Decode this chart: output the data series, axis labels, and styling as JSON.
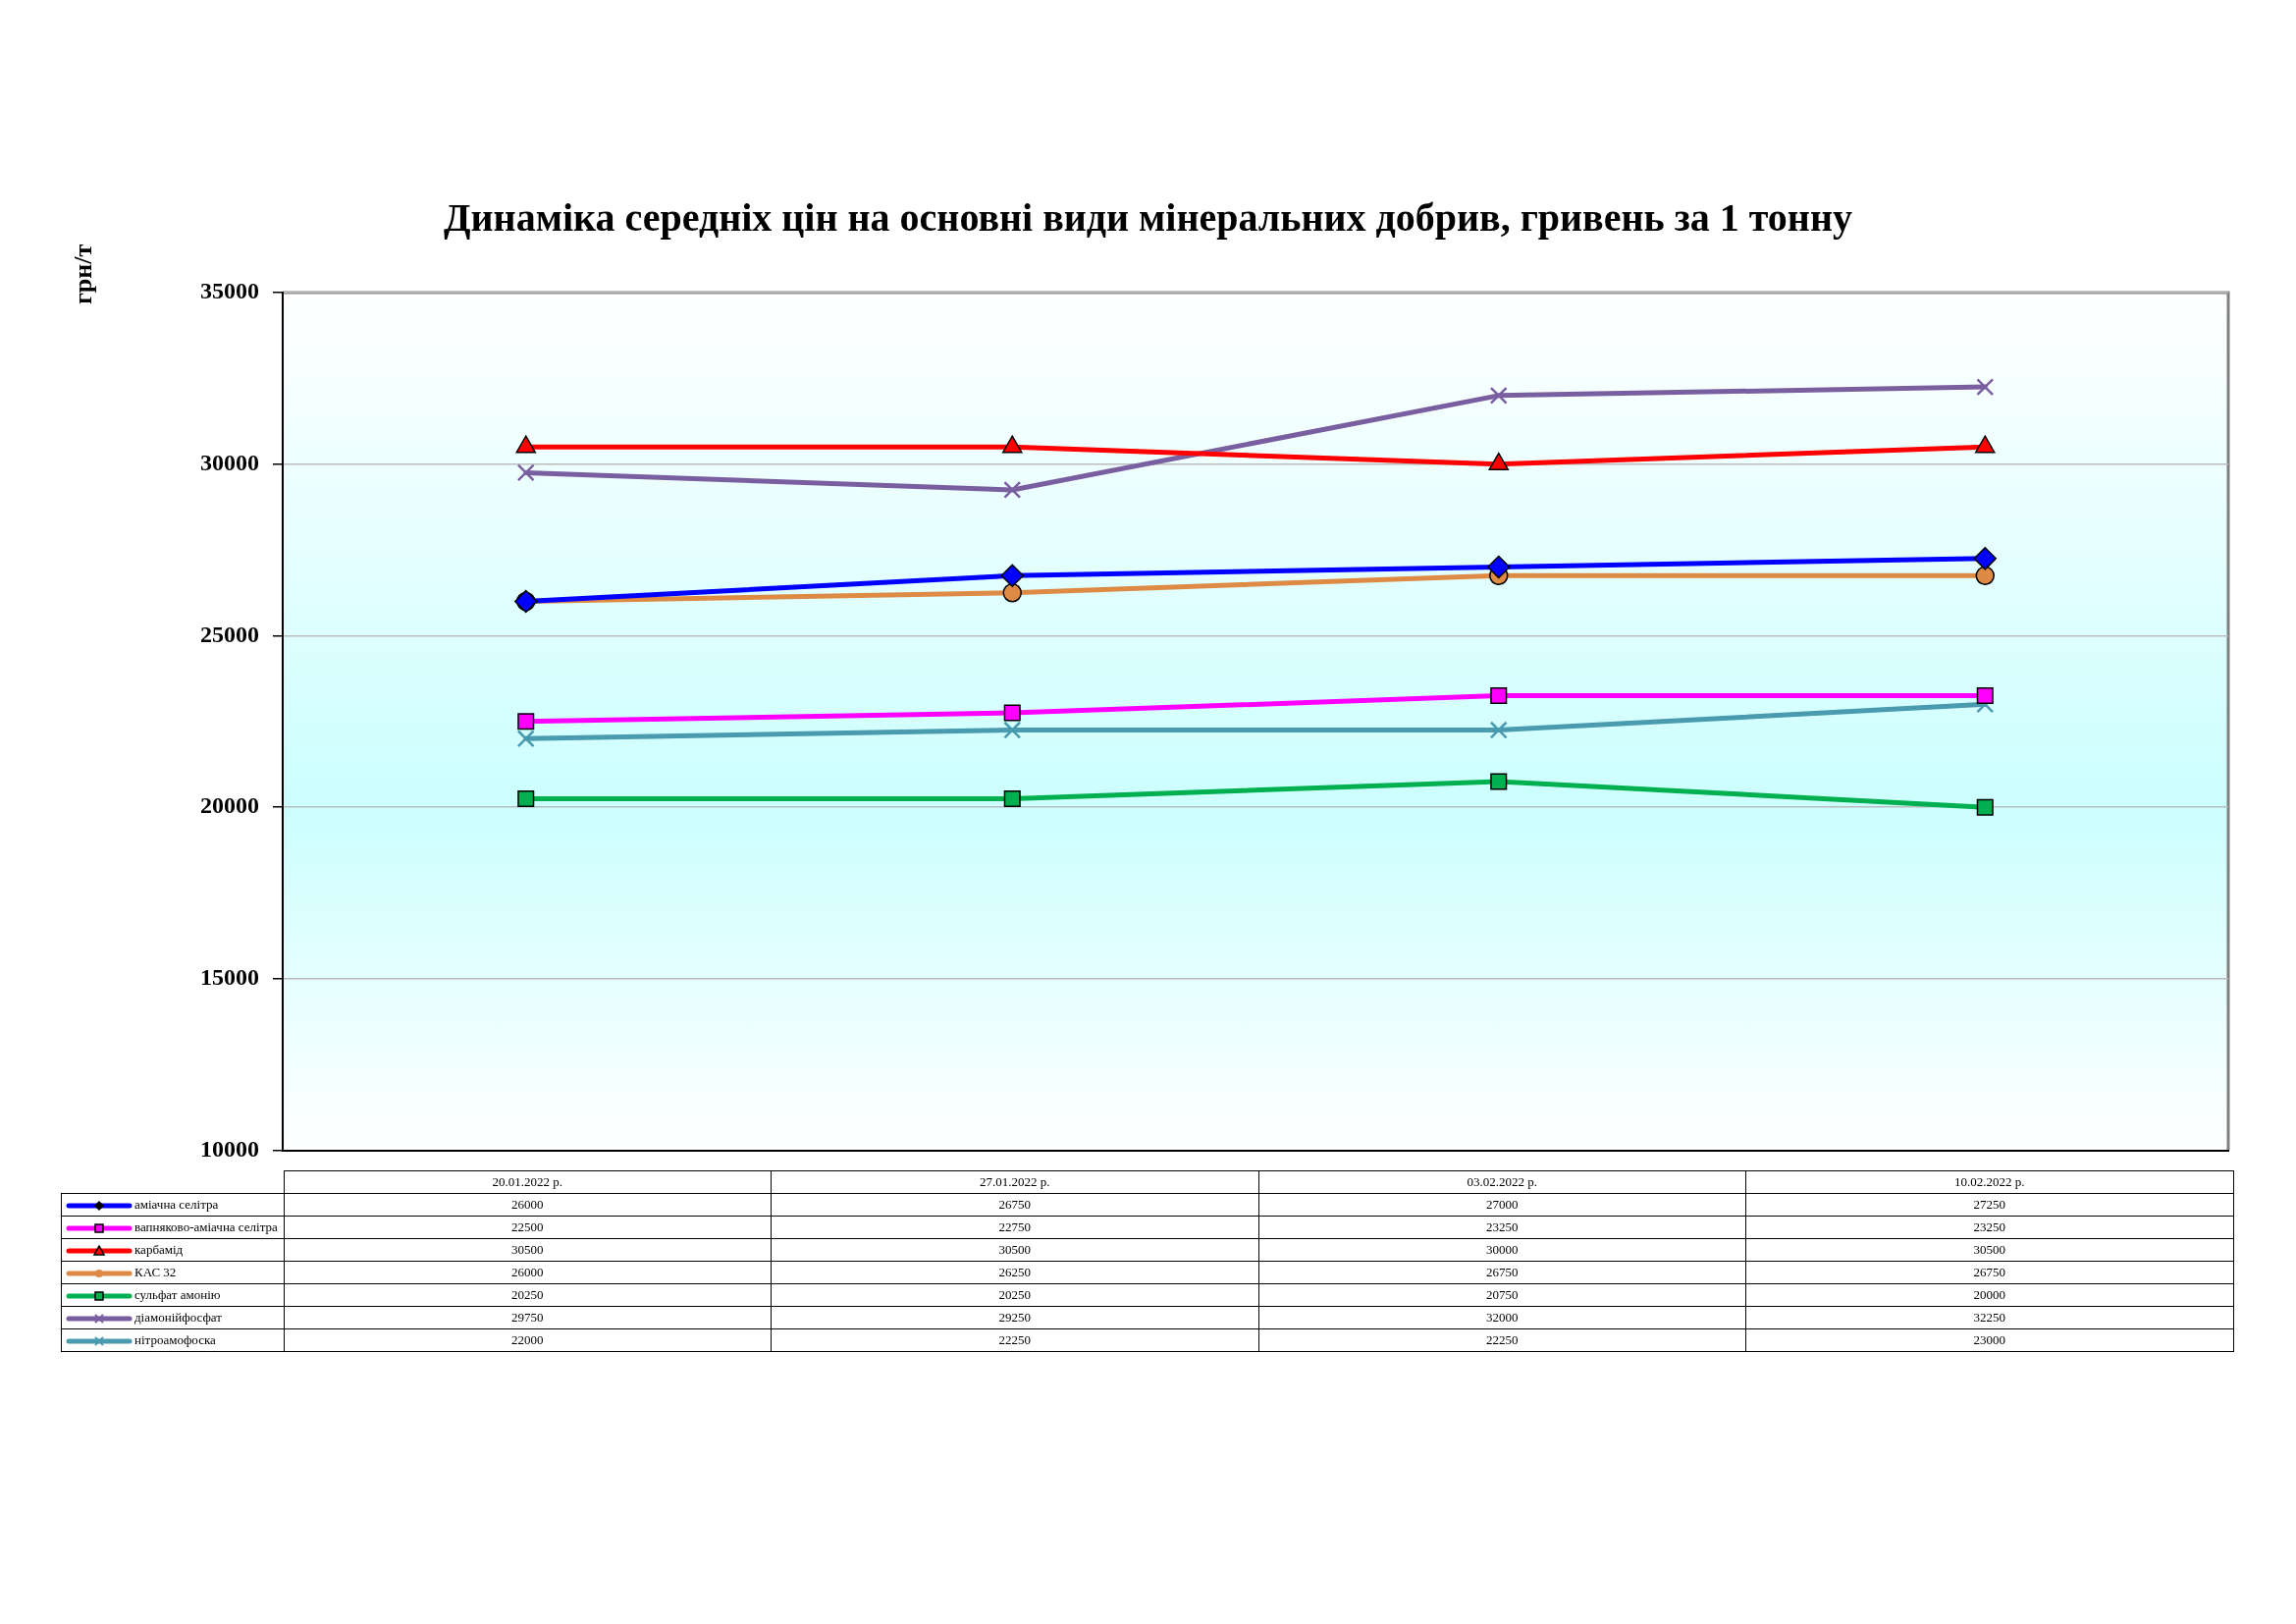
{
  "chart_data": {
    "type": "line",
    "title": "Динаміка середніх цін на основні види мінеральних добрив, гривень за 1 тонну",
    "ylabel": "грн/т",
    "categories": [
      "20.01.2022 р.",
      "27.01.2022 р.",
      "03.02.2022 р.",
      "10.02.2022 р."
    ],
    "ylim": [
      10000,
      35000
    ],
    "yticks": [
      10000,
      15000,
      20000,
      25000,
      30000,
      35000
    ],
    "grid": "y",
    "legend": "bottom",
    "data_labels": true,
    "line_style": "solid",
    "series": [
      {
        "name": "аміачна селітра",
        "color": "#0000ff",
        "marker": "diamond",
        "values": [
          26000,
          26750,
          27000,
          27250
        ]
      },
      {
        "name": "вапняково-аміачна селітра",
        "color": "#ff00ff",
        "marker": "square",
        "values": [
          22500,
          22750,
          23250,
          23250
        ]
      },
      {
        "name": "карбамід",
        "color": "#ff0000",
        "marker": "triangle",
        "values": [
          30500,
          30500,
          30000,
          30500
        ]
      },
      {
        "name": "КАС 32",
        "color": "#dd8a44",
        "marker": "circle",
        "values": [
          26000,
          26250,
          26750,
          26750
        ]
      },
      {
        "name": "сульфат амонію",
        "color": "#00b050",
        "marker": "square",
        "values": [
          20250,
          20250,
          20750,
          20000
        ]
      },
      {
        "name": "діамонійфосфат",
        "color": "#7a5fa0",
        "marker": "cross",
        "values": [
          29750,
          29250,
          32000,
          32250
        ]
      },
      {
        "name": "нітроамофоска",
        "color": "#4a9ab0",
        "marker": "cross",
        "values": [
          22000,
          22250,
          22250,
          23000
        ]
      }
    ]
  }
}
